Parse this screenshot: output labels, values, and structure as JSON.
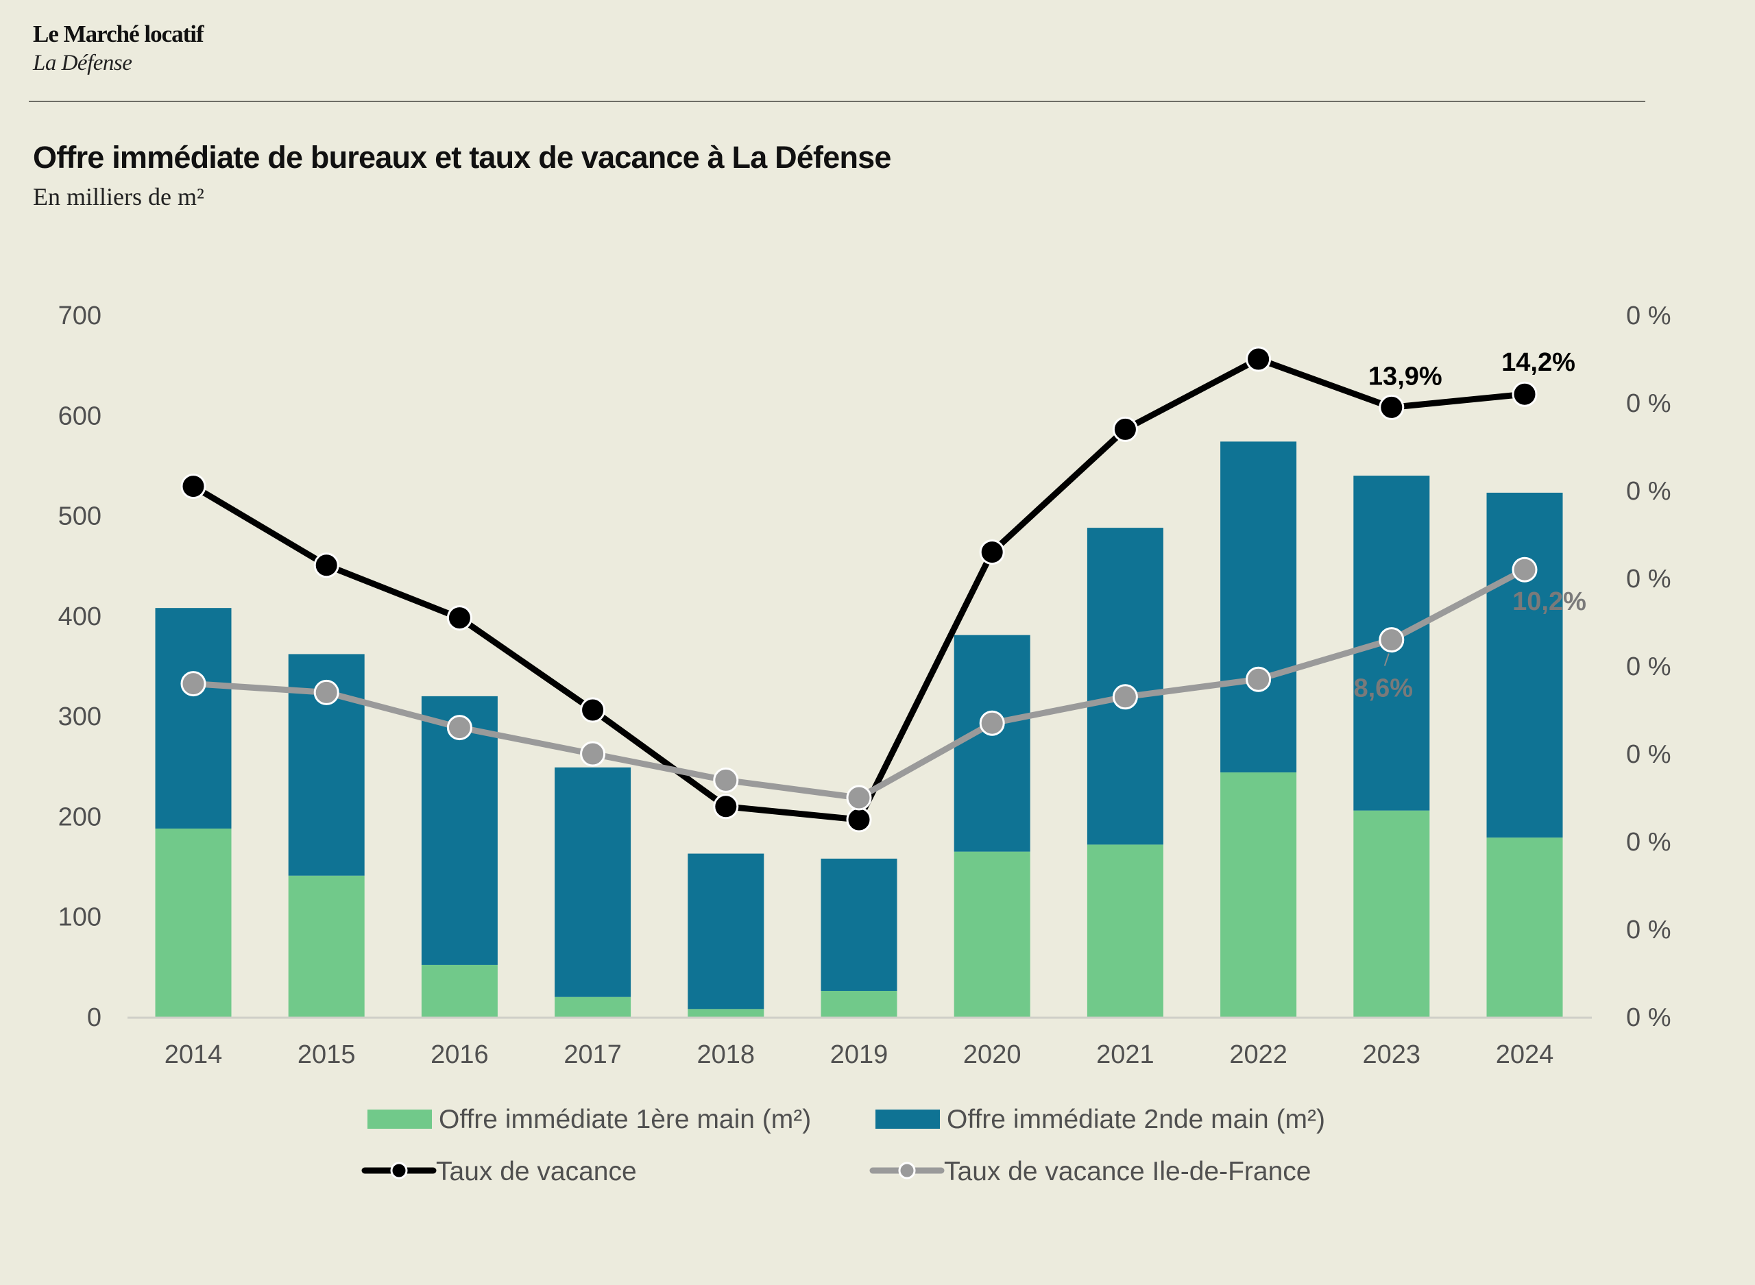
{
  "header": {
    "brand": "Le Marché locatif",
    "location": "La Défense"
  },
  "colors": {
    "background": "#ecebdd",
    "first_hand": "#71c98a",
    "second_hand": "#0f7394",
    "vacancy": "#000000",
    "vacancy_idf": "#9a9a9a"
  },
  "chart_data": {
    "type": "bar",
    "stacked": true,
    "title": "Offre immédiate de bureaux et taux de vacance à La Défense",
    "subtitle": "En milliers de m²",
    "xlabel": "",
    "ylabel": "",
    "categories": [
      "2014",
      "2015",
      "2016",
      "2017",
      "2018",
      "2019",
      "2020",
      "2021",
      "2022",
      "2023",
      "2024"
    ],
    "ylim": [
      0,
      700
    ],
    "yticks": [
      "0",
      "100",
      "200",
      "300",
      "400",
      "500",
      "600",
      "700"
    ],
    "y2lim": [
      0,
      16
    ],
    "y2ticks": [
      "0 %",
      "0 %",
      "0 %",
      "0 %",
      "0 %",
      "0 %",
      "0 %",
      "0 %",
      "0 %"
    ],
    "grid": false,
    "legend_position": "bottom",
    "series": [
      {
        "name": "Offre immédiate 1ère main (m²)",
        "type": "bar",
        "axis": "left",
        "values": [
          188,
          141,
          52,
          20,
          8,
          26,
          165,
          172,
          244,
          206,
          179
        ]
      },
      {
        "name": "Offre immédiate 2nde main (m²)",
        "type": "bar",
        "axis": "left",
        "values": [
          220,
          221,
          268,
          229,
          155,
          132,
          216,
          316,
          330,
          334,
          344
        ]
      },
      {
        "name": "Taux de vacance",
        "type": "line",
        "axis": "right",
        "unit": "%",
        "values": [
          12.1,
          10.3,
          9.1,
          7.0,
          4.8,
          4.5,
          10.6,
          13.4,
          15.0,
          13.9,
          14.2
        ]
      },
      {
        "name": "Taux de vacance Ile-de-France",
        "type": "line",
        "axis": "right",
        "unit": "%",
        "values": [
          7.6,
          7.4,
          6.6,
          6.0,
          5.4,
          5.0,
          6.7,
          7.3,
          7.7,
          8.6,
          10.2
        ]
      }
    ],
    "annotations": [
      {
        "series": "Taux de vacance",
        "category": "2023",
        "text": "13,9%"
      },
      {
        "series": "Taux de vacance",
        "category": "2024",
        "text": "14,2%"
      },
      {
        "series": "Taux de vacance Ile-de-France",
        "category": "2023",
        "text": "8,6%"
      },
      {
        "series": "Taux de vacance Ile-de-France",
        "category": "2024",
        "text": "10,2%"
      }
    ]
  }
}
